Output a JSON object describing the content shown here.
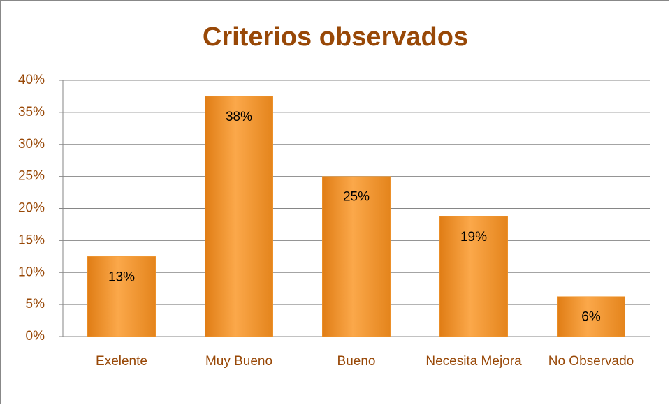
{
  "chart_data": {
    "type": "bar",
    "title": "Criterios observados",
    "categories": [
      "Exelente",
      "Muy Bueno",
      "Bueno",
      "Necesita Mejora",
      "No Observado"
    ],
    "values": [
      12.5,
      37.5,
      25,
      18.75,
      6.25
    ],
    "value_labels": [
      "13%",
      "38%",
      "25%",
      "19%",
      "6%"
    ],
    "color": "#f39a30",
    "ylim": [
      0,
      40
    ],
    "yticks": [
      {
        "value": 0,
        "label": "0%"
      },
      {
        "value": 5,
        "label": "5%"
      },
      {
        "value": 10,
        "label": "10%"
      },
      {
        "value": 15,
        "label": "15%"
      },
      {
        "value": 20,
        "label": "20%"
      },
      {
        "value": 25,
        "label": "25%"
      },
      {
        "value": 30,
        "label": "30%"
      },
      {
        "value": 35,
        "label": "35%"
      },
      {
        "value": 40,
        "label": "40%"
      }
    ],
    "grid": true
  }
}
